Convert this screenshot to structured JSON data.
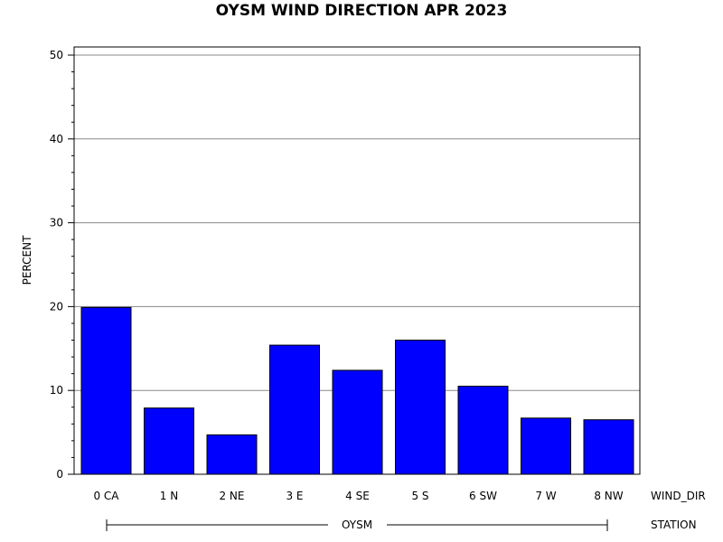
{
  "chart_data": {
    "type": "bar",
    "title": "OYSM WIND DIRECTION APR 2023",
    "ylabel": "PERCENT",
    "ylim": [
      0,
      50
    ],
    "yticks": [
      0,
      10,
      20,
      30,
      40,
      50
    ],
    "categories": [
      "0 CA",
      "1 N",
      "2 NE",
      "3 E",
      "4 SE",
      "5 S",
      "6 SW",
      "7 W",
      "8 NW"
    ],
    "values": [
      19.9,
      7.9,
      4.7,
      15.4,
      12.4,
      16.0,
      10.5,
      6.7,
      6.5
    ],
    "xlabel": "WIND_DIR",
    "group_label": "STATION",
    "group_value": "OYSM",
    "bar_color": "#0000ff",
    "grid": true
  }
}
